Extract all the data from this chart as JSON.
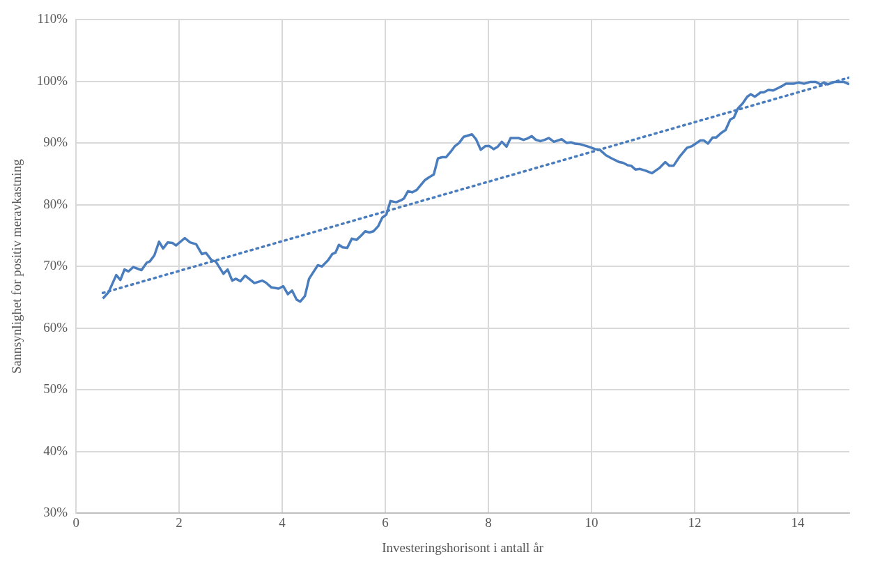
{
  "chart_data": {
    "type": "line",
    "xlabel": "Investeringshorisont i antall år",
    "ylabel": "Sannsynlighet for positiv meravkastning",
    "xlim": [
      0,
      15
    ],
    "xticks": [
      0,
      2,
      4,
      6,
      8,
      10,
      12,
      14
    ],
    "ylim": [
      30,
      110
    ],
    "yticks": [
      {
        "value": 30,
        "label": "30%"
      },
      {
        "value": 40,
        "label": "40%"
      },
      {
        "value": 50,
        "label": "50%"
      },
      {
        "value": 60,
        "label": "60%"
      },
      {
        "value": 70,
        "label": "70%"
      },
      {
        "value": 80,
        "label": "80%"
      },
      {
        "value": 90,
        "label": "90%"
      },
      {
        "value": 100,
        "label": "100%"
      },
      {
        "value": 110,
        "label": "110%"
      }
    ],
    "grid": true,
    "legend": false,
    "marker": "none",
    "series": [
      {
        "color": "#4a7dbd",
        "line_style": "solid",
        "x": [
          0.52,
          0.63,
          0.78,
          0.86,
          0.94,
          1.02,
          1.11,
          1.27,
          1.37,
          1.43,
          1.52,
          1.61,
          1.69,
          1.78,
          1.87,
          1.94,
          2.11,
          2.21,
          2.33,
          2.44,
          2.52,
          2.63,
          2.71,
          2.86,
          2.94,
          3.03,
          3.1,
          3.19,
          3.28,
          3.46,
          3.61,
          3.68,
          3.79,
          3.93,
          4.02,
          4.11,
          4.19,
          4.28,
          4.35,
          4.44,
          4.52,
          4.69,
          4.77,
          4.89,
          4.97,
          5.03,
          5.1,
          5.17,
          5.26,
          5.35,
          5.44,
          5.53,
          5.61,
          5.69,
          5.77,
          5.86,
          5.94,
          6.02,
          6.1,
          6.21,
          6.3,
          6.36,
          6.44,
          6.52,
          6.61,
          6.68,
          6.77,
          6.84,
          6.94,
          7.02,
          7.1,
          7.18,
          7.27,
          7.35,
          7.43,
          7.52,
          7.6,
          7.68,
          7.76,
          7.85,
          7.94,
          8.02,
          8.1,
          8.18,
          8.26,
          8.35,
          8.43,
          8.58,
          8.68,
          8.75,
          8.84,
          8.92,
          9.01,
          9.09,
          9.17,
          9.27,
          9.42,
          9.52,
          9.6,
          9.68,
          9.78,
          9.94,
          10.07,
          10.16,
          10.28,
          10.39,
          10.54,
          10.61,
          10.7,
          10.77,
          10.85,
          10.94,
          11.05,
          11.17,
          11.31,
          11.43,
          11.51,
          11.59,
          11.71,
          11.85,
          11.95,
          12.11,
          12.18,
          12.26,
          12.35,
          12.42,
          12.51,
          12.6,
          12.69,
          12.76,
          12.84,
          12.93,
          13.02,
          13.09,
          13.17,
          13.28,
          13.34,
          13.43,
          13.52,
          13.62,
          13.69,
          13.77,
          13.92,
          14.01,
          14.12,
          14.25,
          14.35,
          14.44,
          14.51,
          14.58,
          14.72,
          14.89,
          15
        ],
        "values": [
          64.8,
          65.8,
          68.6,
          67.8,
          69.5,
          69.2,
          69.9,
          69.4,
          70.6,
          70.8,
          71.8,
          74,
          72.9,
          73.9,
          73.8,
          73.4,
          74.6,
          73.9,
          73.6,
          72,
          72.2,
          71,
          70.8,
          68.8,
          69.5,
          67.7,
          68,
          67.6,
          68.5,
          67.3,
          67.7,
          67.4,
          66.6,
          66.4,
          66.8,
          65.5,
          66.1,
          64.6,
          64.3,
          65.2,
          68,
          70.2,
          70,
          71,
          72,
          72.2,
          73.5,
          73.1,
          73,
          74.5,
          74.3,
          75,
          75.7,
          75.5,
          75.7,
          76.5,
          77.9,
          78.4,
          80.6,
          80.4,
          80.7,
          81,
          82.2,
          82,
          82.4,
          83.1,
          84,
          84.4,
          84.9,
          87.5,
          87.7,
          87.7,
          88.6,
          89.5,
          90,
          91,
          91.2,
          91.4,
          90.6,
          88.9,
          89.5,
          89.5,
          89,
          89.4,
          90.2,
          89.4,
          90.8,
          90.8,
          90.5,
          90.7,
          91.1,
          90.5,
          90.3,
          90.5,
          90.8,
          90.2,
          90.6,
          90,
          90.1,
          89.9,
          89.8,
          89.4,
          89,
          88.9,
          88,
          87.5,
          86.9,
          86.8,
          86.4,
          86.3,
          85.7,
          85.8,
          85.5,
          85.1,
          85.9,
          86.9,
          86.3,
          86.3,
          87.8,
          89.2,
          89.5,
          90.4,
          90.4,
          89.9,
          90.9,
          90.9,
          91.6,
          92.1,
          93.8,
          94.1,
          95.6,
          96.4,
          97.5,
          97.9,
          97.5,
          98.2,
          98.2,
          98.6,
          98.5,
          98.9,
          99.2,
          99.6,
          99.6,
          99.8,
          99.6,
          99.9,
          99.9,
          99.5,
          99.8,
          99.5,
          99.9,
          99.9,
          99.5
        ]
      },
      {
        "color": "#4a7dbd",
        "line_style": "dotted",
        "x": [
          0.52,
          15
        ],
        "values": [
          65.7,
          100.6
        ]
      }
    ]
  }
}
